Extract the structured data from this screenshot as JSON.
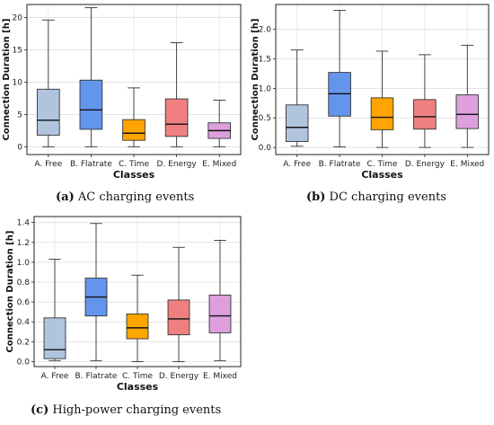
{
  "captions": [
    {
      "letter": "(a)",
      "text": " AC charging events"
    },
    {
      "letter": "(b)",
      "text": " DC charging events"
    },
    {
      "letter": "(c)",
      "text": " High-power charging events"
    }
  ],
  "chart_data": [
    {
      "type": "box",
      "xlabel": "Classes",
      "ylabel": "Connection Duration [h]",
      "categories": [
        "A. Free",
        "B. Flatrate",
        "C. Time",
        "D. Energy",
        "E. Mixed"
      ],
      "colors": [
        "#b0c4de",
        "#6495ed",
        "#ffa500",
        "#f08080",
        "#dda0dd"
      ],
      "ylim": [
        -1.2,
        22
      ],
      "yticks": [
        0,
        5,
        10,
        15,
        20
      ],
      "grid": true,
      "boxes": [
        {
          "min": 0,
          "q1": 1.8,
          "median": 4.1,
          "q3": 8.9,
          "max": 19.6
        },
        {
          "min": 0,
          "q1": 2.7,
          "median": 5.7,
          "q3": 10.3,
          "max": 21.5
        },
        {
          "min": 0,
          "q1": 1.0,
          "median": 2.1,
          "q3": 4.2,
          "max": 9.1
        },
        {
          "min": 0,
          "q1": 1.6,
          "median": 3.5,
          "q3": 7.4,
          "max": 16.1
        },
        {
          "min": 0,
          "q1": 1.3,
          "median": 2.5,
          "q3": 3.7,
          "max": 7.2
        }
      ]
    },
    {
      "type": "box",
      "xlabel": "Classes",
      "ylabel": "Connection Duration [h]",
      "categories": [
        "A. Free",
        "B. Flatrate",
        "C. Time",
        "D. Energy",
        "E. Mixed"
      ],
      "colors": [
        "#b0c4de",
        "#6495ed",
        "#ffa500",
        "#f08080",
        "#dda0dd"
      ],
      "ylim": [
        -0.12,
        2.42
      ],
      "yticks": [
        0.0,
        0.5,
        1.0,
        1.5,
        2.0
      ],
      "grid": true,
      "boxes": [
        {
          "min": 0.02,
          "q1": 0.1,
          "median": 0.34,
          "q3": 0.72,
          "max": 1.65
        },
        {
          "min": 0.01,
          "q1": 0.53,
          "median": 0.91,
          "q3": 1.27,
          "max": 2.32
        },
        {
          "min": 0,
          "q1": 0.3,
          "median": 0.51,
          "q3": 0.84,
          "max": 1.63
        },
        {
          "min": 0,
          "q1": 0.31,
          "median": 0.52,
          "q3": 0.81,
          "max": 1.57
        },
        {
          "min": 0,
          "q1": 0.32,
          "median": 0.56,
          "q3": 0.89,
          "max": 1.73
        }
      ]
    },
    {
      "type": "box",
      "xlabel": "Classes",
      "ylabel": "Connection Duration [h]",
      "categories": [
        "A. Free",
        "B. Flatrate",
        "C. Time",
        "D. Energy",
        "E. Mixed"
      ],
      "colors": [
        "#b0c4de",
        "#6495ed",
        "#ffa500",
        "#f08080",
        "#dda0dd"
      ],
      "ylim": [
        -0.05,
        1.46
      ],
      "yticks": [
        0.0,
        0.2,
        0.4,
        0.6,
        0.8,
        1.0,
        1.2,
        1.4
      ],
      "grid": true,
      "boxes": [
        {
          "min": 0.01,
          "q1": 0.03,
          "median": 0.12,
          "q3": 0.44,
          "max": 1.03
        },
        {
          "min": 0.01,
          "q1": 0.46,
          "median": 0.65,
          "q3": 0.84,
          "max": 1.39
        },
        {
          "min": 0,
          "q1": 0.23,
          "median": 0.34,
          "q3": 0.48,
          "max": 0.87
        },
        {
          "min": 0,
          "q1": 0.27,
          "median": 0.43,
          "q3": 0.62,
          "max": 1.15
        },
        {
          "min": 0.01,
          "q1": 0.29,
          "median": 0.46,
          "q3": 0.67,
          "max": 1.22
        }
      ]
    }
  ]
}
